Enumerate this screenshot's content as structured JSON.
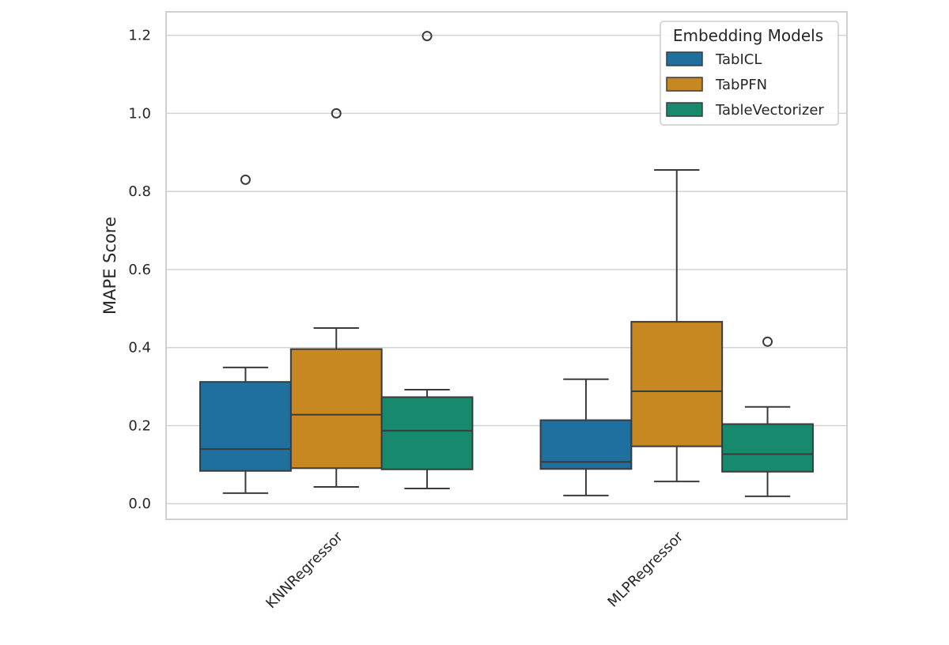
{
  "chart_data": {
    "type": "box",
    "title": "",
    "xlabel": "",
    "ylabel": "MAPE Score",
    "ylim": [
      -0.04,
      1.26
    ],
    "yticks": [
      0.0,
      0.2,
      0.4,
      0.6,
      0.8,
      1.0,
      1.2
    ],
    "ytick_labels": [
      "0.0",
      "0.2",
      "0.4",
      "0.6",
      "0.8",
      "1.0",
      "1.2"
    ],
    "grid": "horizontal",
    "categories": [
      "KNNRegressor",
      "MLPRegressor"
    ],
    "legend": {
      "title": "Embedding Models",
      "position": "top-right"
    },
    "series": [
      {
        "name": "TabICL",
        "color": "#1f6f9f",
        "boxes": [
          {
            "whisker_low": 0.027,
            "q1": 0.084,
            "median": 0.14,
            "q3": 0.312,
            "whisker_high": 0.349,
            "outliers": [
              0.83
            ]
          },
          {
            "whisker_low": 0.021,
            "q1": 0.089,
            "median": 0.107,
            "q3": 0.214,
            "whisker_high": 0.319,
            "outliers": []
          }
        ]
      },
      {
        "name": "TabPFN",
        "color": "#c78721",
        "boxes": [
          {
            "whisker_low": 0.043,
            "q1": 0.091,
            "median": 0.228,
            "q3": 0.396,
            "whisker_high": 0.45,
            "outliers": [
              1.0
            ]
          },
          {
            "whisker_low": 0.057,
            "q1": 0.147,
            "median": 0.288,
            "q3": 0.466,
            "whisker_high": 0.855,
            "outliers": []
          }
        ]
      },
      {
        "name": "TableVectorizer",
        "color": "#17896d",
        "boxes": [
          {
            "whisker_low": 0.039,
            "q1": 0.088,
            "median": 0.187,
            "q3": 0.273,
            "whisker_high": 0.292,
            "outliers": [
              1.198
            ]
          },
          {
            "whisker_low": 0.019,
            "q1": 0.082,
            "median": 0.127,
            "q3": 0.204,
            "whisker_high": 0.248,
            "outliers": [
              0.415
            ]
          }
        ]
      }
    ]
  }
}
